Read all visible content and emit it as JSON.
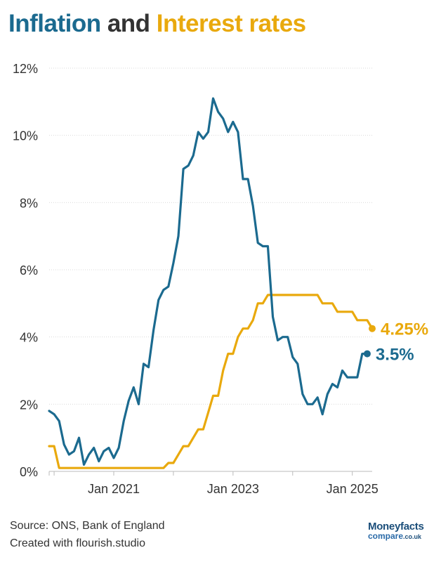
{
  "title": {
    "part1": "Inflation",
    "part2": "and",
    "part3": "Interest rates"
  },
  "colors": {
    "inflation": "#1b6a8f",
    "interest": "#e9a90d",
    "grid": "#d9d9d9",
    "text": "#333333"
  },
  "chart_data": {
    "type": "line",
    "title": "Inflation and Interest rates",
    "y_ticks": [
      "0%",
      "2%",
      "4%",
      "6%",
      "8%",
      "10%",
      "12%"
    ],
    "ylim": [
      0,
      12
    ],
    "x_ticks": [
      "Jan 2021",
      "Jan 2023",
      "Jan 2025"
    ],
    "x_tick_dates": [
      "2021-01",
      "2023-01",
      "2025-01"
    ],
    "x_start": "2019-12",
    "x_end": "2025-05",
    "grid": true,
    "series": [
      {
        "name": "Inflation",
        "color": "#1b6a8f",
        "end_label": "3.5%",
        "values": [
          1.8,
          1.7,
          1.5,
          0.8,
          0.5,
          0.6,
          1.0,
          0.2,
          0.5,
          0.7,
          0.3,
          0.6,
          0.7,
          0.4,
          0.7,
          1.5,
          2.1,
          2.5,
          2.0,
          3.2,
          3.1,
          4.2,
          5.1,
          5.4,
          5.5,
          6.2,
          7.0,
          9.0,
          9.1,
          9.4,
          10.1,
          9.9,
          10.1,
          11.1,
          10.7,
          10.5,
          10.1,
          10.4,
          10.1,
          8.7,
          8.7,
          7.9,
          6.8,
          6.7,
          6.7,
          4.6,
          3.9,
          4.0,
          4.0,
          3.4,
          3.2,
          2.3,
          2.0,
          2.0,
          2.2,
          1.7,
          2.3,
          2.6,
          2.5,
          3.0,
          2.8,
          2.8,
          2.8,
          3.5,
          3.5
        ]
      },
      {
        "name": "Interest rates",
        "color": "#e9a90d",
        "end_label": "4.25%",
        "values": [
          0.75,
          0.75,
          0.1,
          0.1,
          0.1,
          0.1,
          0.1,
          0.1,
          0.1,
          0.1,
          0.1,
          0.1,
          0.1,
          0.1,
          0.1,
          0.1,
          0.1,
          0.1,
          0.1,
          0.1,
          0.1,
          0.1,
          0.1,
          0.1,
          0.25,
          0.25,
          0.5,
          0.75,
          0.75,
          1.0,
          1.25,
          1.25,
          1.75,
          2.25,
          2.25,
          3.0,
          3.5,
          3.5,
          4.0,
          4.25,
          4.25,
          4.5,
          5.0,
          5.0,
          5.25,
          5.25,
          5.25,
          5.25,
          5.25,
          5.25,
          5.25,
          5.25,
          5.25,
          5.25,
          5.25,
          5.0,
          5.0,
          5.0,
          4.75,
          4.75,
          4.75,
          4.75,
          4.5,
          4.5,
          4.5,
          4.25
        ]
      }
    ]
  },
  "footer": {
    "source": "Source: ONS, Bank of England",
    "created": "Created with flourish.studio"
  },
  "logo": {
    "line1": "Moneyfacts",
    "line2": "compare",
    "suffix": ".co.uk"
  }
}
